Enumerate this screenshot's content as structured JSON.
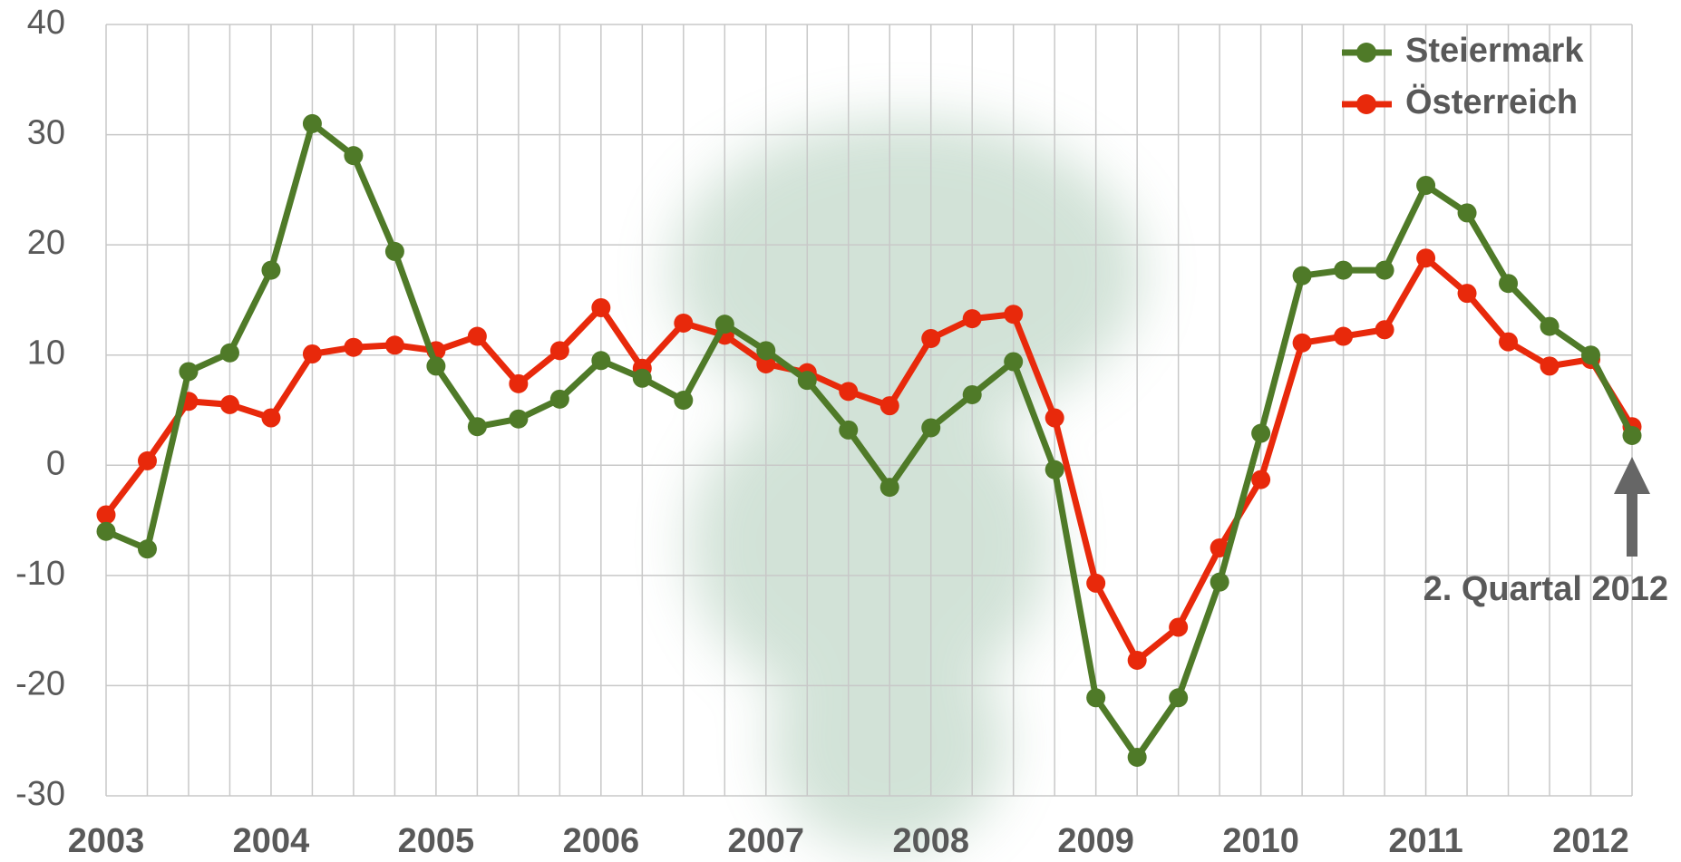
{
  "chart_data": {
    "type": "line",
    "categories": [
      "2003",
      null,
      null,
      null,
      "2004",
      null,
      null,
      null,
      "2005",
      null,
      null,
      null,
      "2006",
      null,
      null,
      null,
      "2007",
      null,
      null,
      null,
      "2008",
      null,
      null,
      null,
      "2009",
      null,
      null,
      null,
      "2010",
      null,
      null,
      null,
      "2011",
      null,
      null,
      null,
      "2012",
      null
    ],
    "series": [
      {
        "name": "Steiermark",
        "color": "#4f7a28",
        "values": [
          -6.0,
          -7.6,
          8.5,
          10.2,
          17.7,
          31.0,
          28.1,
          19.4,
          9.0,
          3.5,
          4.2,
          6.0,
          9.5,
          7.9,
          5.9,
          12.8,
          10.4,
          7.7,
          3.2,
          -2.0,
          3.4,
          6.4,
          9.4,
          -0.4,
          -21.1,
          -26.5,
          -21.1,
          -10.6,
          2.9,
          17.2,
          17.7,
          17.7,
          25.4,
          22.9,
          16.5,
          12.6,
          10.0,
          2.7
        ]
      },
      {
        "name": "Österreich",
        "color": "#e8290b",
        "values": [
          -4.5,
          0.4,
          5.8,
          5.5,
          4.3,
          10.1,
          10.7,
          10.9,
          10.4,
          11.7,
          7.4,
          10.4,
          14.3,
          8.8,
          12.9,
          11.8,
          9.2,
          8.4,
          6.7,
          5.4,
          11.5,
          13.3,
          13.7,
          4.3,
          -10.7,
          -17.7,
          -14.7,
          -7.5,
          -1.3,
          11.1,
          11.7,
          12.3,
          18.8,
          15.6,
          11.2,
          9.0,
          9.6,
          3.5
        ]
      }
    ],
    "ylim": [
      -30,
      40
    ],
    "yticks": [
      -30,
      -20,
      -10,
      0,
      10,
      20,
      30,
      40
    ],
    "grid": true,
    "legend": "upper right",
    "annotation": "2. Quartal 2012"
  }
}
